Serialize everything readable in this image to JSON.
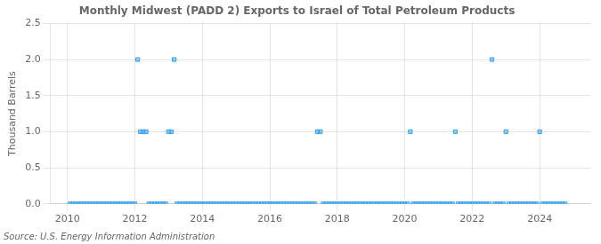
{
  "chart_data": {
    "type": "scatter",
    "title": "Monthly Midwest (PADD 2) Exports to Israel of Total Petroleum Products",
    "ylabel": "Thousand Barrels",
    "annotations": [
      "Source: U.S. Energy Information Administration"
    ],
    "marker": "square",
    "grid": true,
    "xlim": [
      2009.5,
      2025.5
    ],
    "ylim": [
      0,
      2.5
    ],
    "xticks": [
      2010,
      2012,
      2014,
      2016,
      2018,
      2020,
      2022,
      2024
    ],
    "yticks": [
      {
        "value": 0.0,
        "label": "0.0"
      },
      0.5,
      {
        "value": 1.0,
        "label": "1.0"
      },
      1.5,
      {
        "value": 2.0,
        "label": "2.0"
      },
      2.5
    ],
    "x": [
      2010.0833,
      2010.1667,
      2010.25,
      2010.3333,
      2010.4167,
      2010.5,
      2010.5833,
      2010.6667,
      2010.75,
      2010.8333,
      2010.9167,
      2011.0,
      2011.0833,
      2011.1667,
      2011.25,
      2011.3333,
      2011.4167,
      2011.5,
      2011.5833,
      2011.6667,
      2011.75,
      2011.8333,
      2011.9167,
      2012.0,
      2012.0833,
      2012.1667,
      2012.25,
      2012.3333,
      2012.4167,
      2012.5,
      2012.5833,
      2012.6667,
      2012.75,
      2012.8333,
      2012.9167,
      2013.0,
      2013.0833,
      2013.1667,
      2013.25,
      2013.3333,
      2013.4167,
      2013.5,
      2013.5833,
      2013.6667,
      2013.75,
      2013.8333,
      2013.9167,
      2014.0,
      2014.0833,
      2014.1667,
      2014.25,
      2014.3333,
      2014.4167,
      2014.5,
      2014.5833,
      2014.6667,
      2014.75,
      2014.8333,
      2014.9167,
      2015.0,
      2015.0833,
      2015.1667,
      2015.25,
      2015.3333,
      2015.4167,
      2015.5,
      2015.5833,
      2015.6667,
      2015.75,
      2015.8333,
      2015.9167,
      2016.0,
      2016.0833,
      2016.1667,
      2016.25,
      2016.3333,
      2016.4167,
      2016.5,
      2016.5833,
      2016.6667,
      2016.75,
      2016.8333,
      2016.9167,
      2017.0,
      2017.0833,
      2017.1667,
      2017.25,
      2017.3333,
      2017.4167,
      2017.5,
      2017.5833,
      2017.6667,
      2017.75,
      2017.8333,
      2017.9167,
      2018.0,
      2018.0833,
      2018.1667,
      2018.25,
      2018.3333,
      2018.4167,
      2018.5,
      2018.5833,
      2018.6667,
      2018.75,
      2018.8333,
      2018.9167,
      2019.0,
      2019.0833,
      2019.1667,
      2019.25,
      2019.3333,
      2019.4167,
      2019.5,
      2019.5833,
      2019.6667,
      2019.75,
      2019.8333,
      2019.9167,
      2020.0,
      2020.0833,
      2020.1667,
      2020.25,
      2020.3333,
      2020.4167,
      2020.5,
      2020.5833,
      2020.6667,
      2020.75,
      2020.8333,
      2020.9167,
      2021.0,
      2021.0833,
      2021.1667,
      2021.25,
      2021.3333,
      2021.4167,
      2021.5,
      2021.5833,
      2021.6667,
      2021.75,
      2021.8333,
      2021.9167,
      2022.0,
      2022.0833,
      2022.1667,
      2022.25,
      2022.3333,
      2022.4167,
      2022.5,
      2022.5833,
      2022.6667,
      2022.75,
      2022.8333,
      2022.9167,
      2023.0,
      2023.0833,
      2023.1667,
      2023.25,
      2023.3333,
      2023.4167,
      2023.5,
      2023.5833,
      2023.6667,
      2023.75,
      2023.8333,
      2023.9167,
      2024.0,
      2024.0833,
      2024.1667,
      2024.25,
      2024.3333,
      2024.4167,
      2024.5,
      2024.5833,
      2024.6667,
      2024.75
    ],
    "values": [
      0,
      0,
      0,
      0,
      0,
      0,
      0,
      0,
      0,
      0,
      0,
      0,
      0,
      0,
      0,
      0,
      0,
      0,
      0,
      0,
      0,
      0,
      0,
      0,
      2,
      1,
      1,
      1,
      0,
      0,
      0,
      0,
      0,
      0,
      0,
      1,
      1,
      2,
      0,
      0,
      0,
      0,
      0,
      0,
      0,
      0,
      0,
      0,
      0,
      0,
      0,
      0,
      0,
      0,
      0,
      0,
      0,
      0,
      0,
      0,
      0,
      0,
      0,
      0,
      0,
      0,
      0,
      0,
      0,
      0,
      0,
      0,
      0,
      0,
      0,
      0,
      0,
      0,
      0,
      0,
      0,
      0,
      0,
      0,
      0,
      0,
      0,
      0,
      1,
      1,
      0,
      0,
      0,
      0,
      0,
      0,
      0,
      0,
      0,
      0,
      0,
      0,
      0,
      0,
      0,
      0,
      0,
      0,
      0,
      0,
      0,
      0,
      0,
      0,
      0,
      0,
      0,
      0,
      0,
      0,
      0,
      1,
      0,
      0,
      0,
      0,
      0,
      0,
      0,
      0,
      0,
      0,
      0,
      0,
      0,
      0,
      0,
      1,
      0,
      0,
      0,
      0,
      0,
      0,
      0,
      0,
      0,
      0,
      0,
      0,
      2,
      0,
      0,
      0,
      0,
      1,
      0,
      0,
      0,
      0,
      0,
      0,
      0,
      0,
      0,
      0,
      0,
      1,
      0,
      0,
      0,
      0,
      0,
      0,
      0,
      0,
      0
    ]
  }
}
